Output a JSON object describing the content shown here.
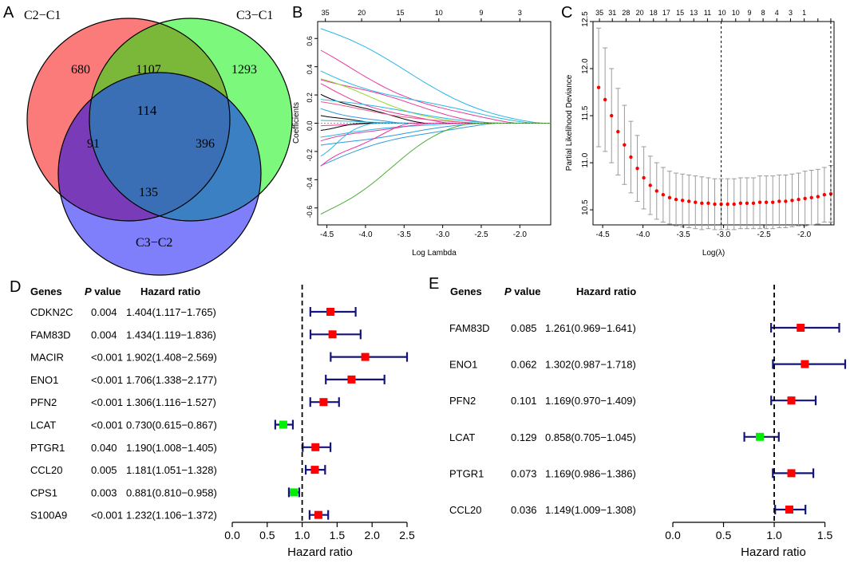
{
  "chart_data": [
    {
      "panel": "A",
      "type": "venn",
      "sets": [
        "C2−C1",
        "C3−C1",
        "C3−C2"
      ],
      "set_colors": [
        "#fb7b7b",
        "#7cf97c",
        "#7f7ffb"
      ],
      "regions": {
        "only_c2c1": "680",
        "only_c3c1": "1293",
        "only_c3c2": "135",
        "c2c1_c3c1": "1107",
        "c2c1_c3c2": "91",
        "c3c1_c3c2": "396",
        "all": "114"
      },
      "overlap_colors": {
        "c2c1_c3c1": "#7bb83a",
        "c2c1_c3c2": "#7a3bb8",
        "c3c1_c3c2": "#3b80c2",
        "all": "#3a6fb5"
      },
      "highlight_color": "#f5a623"
    },
    {
      "panel": "B",
      "type": "line",
      "xlabel": "Log Lambda",
      "ylabel": "Coefficients",
      "xlim": [
        -4.62,
        -1.6
      ],
      "ylim": [
        -0.72,
        0.72
      ],
      "x_ticks": [
        -4.5,
        -4.0,
        -3.5,
        -3.0,
        -2.5,
        -2.0
      ],
      "x_tick_labels": [
        "-4.5",
        "-4.0",
        "-3.5",
        "-3.0",
        "-2.5",
        "-2.0"
      ],
      "y_ticks": [
        -0.6,
        -0.4,
        -0.2,
        0.0,
        0.2,
        0.4,
        0.6
      ],
      "y_tick_labels": [
        "-0.6",
        "-0.4",
        "-0.2",
        "0.0",
        "0.2",
        "0.4",
        "0.6"
      ],
      "top_ticks": [
        -4.52,
        -4.05,
        -3.55,
        -3.05,
        -2.5,
        -2.0
      ],
      "top_tick_labels": [
        "35",
        "20",
        "15",
        "10",
        "9",
        "3"
      ],
      "series": [
        {
          "color": "#29b6e8",
          "start": 0.67,
          "end_x": -1.7
        },
        {
          "color": "#e8389a",
          "start": 0.47,
          "end_x": -2.05
        },
        {
          "color": "#29b6e8",
          "start": 0.38,
          "end_x": -1.8
        },
        {
          "color": "#e8389a",
          "start": 0.34,
          "end_x": -2.3
        },
        {
          "color": "#9ad62e",
          "start": 0.3,
          "end_x": -2.6
        },
        {
          "color": "#e8389a",
          "start": 0.26,
          "end_x": -2.9
        },
        {
          "color": "#000000",
          "start": 0.22,
          "end_x": -3.2
        },
        {
          "color": "#29b6e8",
          "start": 0.18,
          "end_x": -2.2
        },
        {
          "color": "#e85a8a",
          "start": 0.14,
          "end_x": -2.5
        },
        {
          "color": "#2e9ae0",
          "start": 0.1,
          "end_x": -3.5
        },
        {
          "color": "#000000",
          "start": 0.06,
          "end_x": -3.8
        },
        {
          "color": "#29b6e8",
          "start": 0.02,
          "end_x": -3.3
        },
        {
          "color": "#e8389a",
          "start": -0.02,
          "end_x": -3.7
        },
        {
          "color": "#000000",
          "start": -0.05,
          "end_x": -4.0
        },
        {
          "color": "#29b6e8",
          "start": -0.09,
          "end_x": -2.7
        },
        {
          "color": "#e8389a",
          "start": -0.13,
          "end_x": -3.1
        },
        {
          "color": "#2e9ae0",
          "start": -0.17,
          "end_x": -2.4
        },
        {
          "color": "#29b6e8",
          "start": -0.22,
          "end_x": -3.9
        },
        {
          "color": "#2e9ae0",
          "start": -0.28,
          "end_x": -2.3
        },
        {
          "color": "#e8389a",
          "start": -0.33,
          "end_x": -3.4
        },
        {
          "color": "#4cae38",
          "start": -0.68,
          "end_x": -2.6
        }
      ]
    },
    {
      "panel": "C",
      "type": "scatter",
      "xlabel": "Log(λ)",
      "ylabel": "Partial Likelihood Deviance",
      "xlim": [
        -4.62,
        -1.63
      ],
      "ylim": [
        10.34,
        12.5
      ],
      "x_ticks": [
        -4.5,
        -4.0,
        -3.5,
        -3.0,
        -2.5,
        -2.0
      ],
      "x_tick_labels": [
        "-4.5",
        "-4.0",
        "-3.5",
        "-3.0",
        "-2.5",
        "-2.0"
      ],
      "y_ticks": [
        10.5,
        11.0,
        11.5,
        12.0,
        12.5
      ],
      "y_tick_labels": [
        "10.5",
        "11.0",
        "11.5",
        "12.0",
        "12.5"
      ],
      "top_ticks": [
        -4.54,
        -4.38,
        -4.21,
        -4.04,
        -3.87,
        -3.71,
        -3.54,
        -3.37,
        -3.2,
        -3.02,
        -2.85,
        -2.68,
        -2.51,
        -2.34,
        -2.17,
        -2.0,
        -1.83,
        -1.67
      ],
      "top_tick_labels": [
        "35",
        "31",
        "28",
        "20",
        "18",
        "17",
        "15",
        "13",
        "11",
        "10",
        "10",
        "9",
        "8",
        "4",
        "3",
        "1",
        "",
        ""
      ],
      "x": [
        -4.55,
        -4.47,
        -4.39,
        -4.31,
        -4.23,
        -4.15,
        -4.07,
        -3.99,
        -3.91,
        -3.83,
        -3.75,
        -3.67,
        -3.59,
        -3.51,
        -3.43,
        -3.35,
        -3.27,
        -3.19,
        -3.11,
        -3.03,
        -2.95,
        -2.87,
        -2.79,
        -2.71,
        -2.63,
        -2.55,
        -2.47,
        -2.39,
        -2.31,
        -2.23,
        -2.15,
        -2.07,
        -1.99,
        -1.91,
        -1.83,
        -1.75,
        -1.67
      ],
      "y": [
        11.8,
        11.67,
        11.5,
        11.33,
        11.19,
        11.06,
        10.94,
        10.84,
        10.76,
        10.7,
        10.66,
        10.63,
        10.61,
        10.6,
        10.59,
        10.58,
        10.57,
        10.57,
        10.56,
        10.56,
        10.56,
        10.56,
        10.57,
        10.57,
        10.57,
        10.58,
        10.58,
        10.58,
        10.59,
        10.59,
        10.6,
        10.61,
        10.62,
        10.63,
        10.64,
        10.66,
        10.67
      ],
      "err": [
        0.63,
        0.55,
        0.5,
        0.46,
        0.42,
        0.38,
        0.35,
        0.33,
        0.31,
        0.3,
        0.29,
        0.28,
        0.28,
        0.28,
        0.28,
        0.28,
        0.28,
        0.27,
        0.27,
        0.27,
        0.27,
        0.27,
        0.27,
        0.27,
        0.27,
        0.28,
        0.28,
        0.28,
        0.28,
        0.28,
        0.28,
        0.28,
        0.29,
        0.29,
        0.29,
        0.29,
        0.3
      ],
      "vlines": [
        -3.03,
        -1.67
      ],
      "point_color": "#ff0000",
      "err_color": "#9b9b9b"
    },
    {
      "panel": "D",
      "type": "forest",
      "headers": {
        "genes": "Genes",
        "p": "P",
        "p_suffix": " value",
        "hr": "Hazard ratio"
      },
      "xlabel": "Hazard ratio",
      "xlim": [
        0,
        2.5
      ],
      "x_ticks": [
        0,
        0.5,
        1.0,
        1.5,
        2.0,
        2.5
      ],
      "x_tick_labels": [
        "0.0",
        "0.5",
        "1.0",
        "1.5",
        "2.0",
        "2.5"
      ],
      "ref_line": 1.0,
      "rows": [
        {
          "gene": "CDKN2C",
          "p": "0.004",
          "hr_text": "1.404(1.117−1.765)",
          "hr": 1.404,
          "lo": 1.117,
          "hi": 1.765
        },
        {
          "gene": "FAM83D",
          "p": "0.004",
          "hr_text": "1.434(1.119−1.836)",
          "hr": 1.434,
          "lo": 1.119,
          "hi": 1.836
        },
        {
          "gene": "MACIR",
          "p": "<0.001",
          "hr_text": "1.902(1.408−2.569)",
          "hr": 1.902,
          "lo": 1.408,
          "hi": 2.569
        },
        {
          "gene": "ENO1",
          "p": "<0.001",
          "hr_text": "1.706(1.338−2.177)",
          "hr": 1.706,
          "lo": 1.338,
          "hi": 2.177
        },
        {
          "gene": "PFN2",
          "p": "<0.001",
          "hr_text": "1.306(1.116−1.527)",
          "hr": 1.306,
          "lo": 1.116,
          "hi": 1.527
        },
        {
          "gene": "LCAT",
          "p": "<0.001",
          "hr_text": "0.730(0.615−0.867)",
          "hr": 0.73,
          "lo": 0.615,
          "hi": 0.867
        },
        {
          "gene": "PTGR1",
          "p": "0.040",
          "hr_text": "1.190(1.008−1.405)",
          "hr": 1.19,
          "lo": 1.008,
          "hi": 1.405
        },
        {
          "gene": "CCL20",
          "p": "0.005",
          "hr_text": "1.181(1.051−1.328)",
          "hr": 1.181,
          "lo": 1.051,
          "hi": 1.328
        },
        {
          "gene": "CPS1",
          "p": "0.003",
          "hr_text": "0.881(0.810−0.958)",
          "hr": 0.881,
          "lo": 0.81,
          "hi": 0.958
        },
        {
          "gene": "S100A9",
          "p": "<0.001",
          "hr_text": "1.232(1.106−1.372)",
          "hr": 1.232,
          "lo": 1.106,
          "hi": 1.372
        }
      ]
    },
    {
      "panel": "E",
      "type": "forest",
      "headers": {
        "genes": "Genes",
        "p": "P",
        "p_suffix": " value",
        "hr": "Hazard ratio"
      },
      "xlabel": "Hazard ratio",
      "xlim": [
        0,
        1.7
      ],
      "x_ticks": [
        0,
        0.5,
        1.0,
        1.5
      ],
      "x_tick_labels": [
        "0.0",
        "0.5",
        "1.0",
        "1.5"
      ],
      "ref_line": 1.0,
      "rows": [
        {
          "gene": "FAM83D",
          "p": "0.085",
          "hr_text": "1.261(0.969−1.641)",
          "hr": 1.261,
          "lo": 0.969,
          "hi": 1.641
        },
        {
          "gene": "ENO1",
          "p": "0.062",
          "hr_text": "1.302(0.987−1.718)",
          "hr": 1.302,
          "lo": 0.987,
          "hi": 1.718
        },
        {
          "gene": "PFN2",
          "p": "0.101",
          "hr_text": "1.169(0.970−1.409)",
          "hr": 1.169,
          "lo": 0.97,
          "hi": 1.409
        },
        {
          "gene": "LCAT",
          "p": "0.129",
          "hr_text": "0.858(0.705−1.045)",
          "hr": 0.858,
          "lo": 0.705,
          "hi": 1.045
        },
        {
          "gene": "PTGR1",
          "p": "0.073",
          "hr_text": "1.169(0.986−1.386)",
          "hr": 1.169,
          "lo": 0.986,
          "hi": 1.386
        },
        {
          "gene": "CCL20",
          "p": "0.036",
          "hr_text": "1.149(1.009−1.308)",
          "hr": 1.149,
          "lo": 1.009,
          "hi": 1.308
        }
      ]
    }
  ],
  "panel_labels": {
    "a": "A",
    "b": "B",
    "c": "C",
    "d": "D",
    "e": "E"
  },
  "colors": {
    "risk": "#ff0000",
    "protective": "#00ee00",
    "ci": "#14147a",
    "text": "#000000"
  }
}
